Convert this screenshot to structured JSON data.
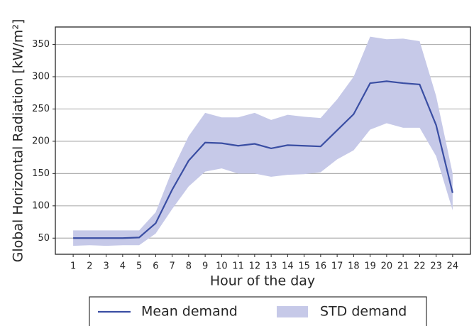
{
  "chart_data": {
    "type": "line",
    "xlabel": "Hour of the day",
    "ylabel": "Global Horizontal Radiation [kW/m²]",
    "categories": [
      "1",
      "2",
      "3",
      "4",
      "5",
      "6",
      "7",
      "8",
      "9",
      "10",
      "11",
      "12",
      "13",
      "14",
      "15",
      "16",
      "17",
      "18",
      "19",
      "20",
      "21",
      "22",
      "23",
      "24"
    ],
    "series": [
      {
        "name": "Mean demand",
        "color": "#3a4ea3",
        "values": [
          50,
          50,
          50,
          50,
          51,
          73,
          125,
          170,
          198,
          197,
          193,
          196,
          189,
          194,
          193,
          192,
          217,
          242,
          290,
          293,
          290,
          288,
          225,
          120
        ]
      },
      {
        "name": "STD demand",
        "color": "#c6c9e8",
        "upper": [
          62,
          62,
          62,
          62,
          62,
          90,
          155,
          208,
          244,
          237,
          237,
          244,
          233,
          241,
          238,
          236,
          265,
          300,
          362,
          358,
          359,
          355,
          270,
          150
        ],
        "lower": [
          38,
          39,
          38,
          39,
          39,
          57,
          95,
          130,
          153,
          158,
          150,
          150,
          145,
          148,
          149,
          152,
          172,
          186,
          218,
          228,
          221,
          221,
          177,
          93
        ]
      }
    ],
    "ylim": [
      25,
      377
    ],
    "yticks": [
      50,
      100,
      150,
      200,
      250,
      300,
      350
    ],
    "grid": true,
    "legend": "bottom"
  }
}
